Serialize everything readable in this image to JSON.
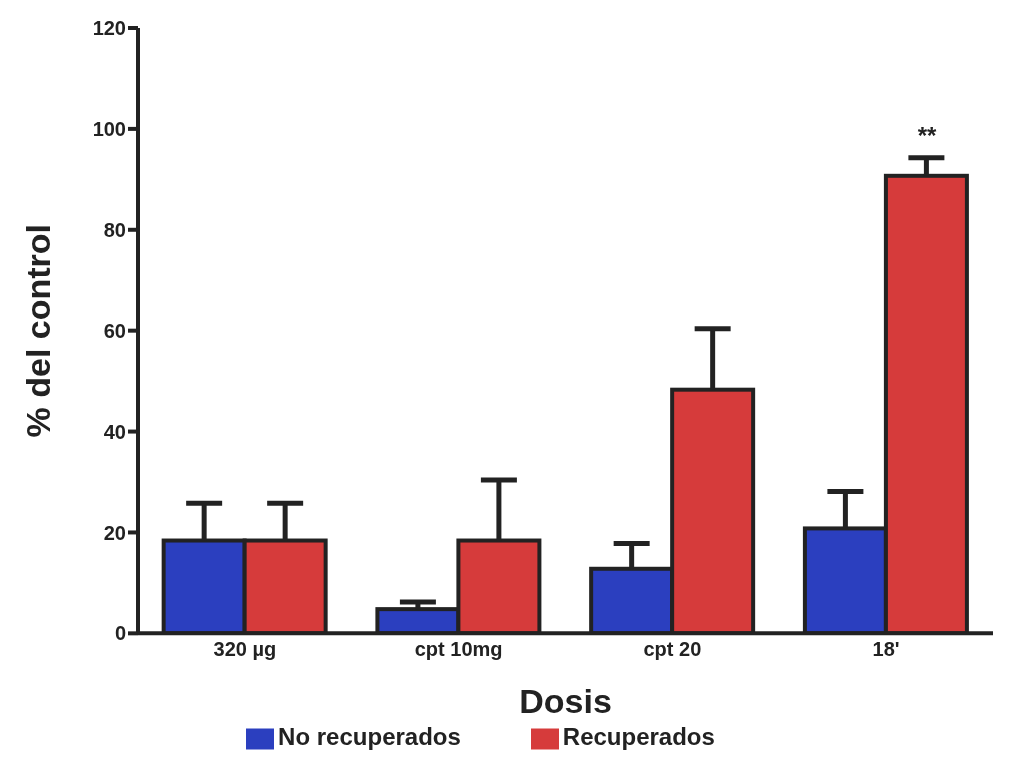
{
  "chart_data": {
    "type": "bar",
    "xlabel": "Dosis",
    "ylabel": "% del control",
    "categories": [
      "320 µg",
      "cpt 10mg",
      "cpt 20",
      "18'"
    ],
    "series": [
      {
        "name": "No recuperados",
        "color": "#2b3fbf",
        "values": [
          18.4,
          4.8,
          12.8,
          20.8
        ],
        "errors": [
          [
            18.4,
            25.8
          ],
          [
            4.8,
            6.2
          ],
          [
            12.8,
            17.8
          ],
          [
            20.8,
            28.1
          ]
        ]
      },
      {
        "name": "Recuperados",
        "color": "#d63b3b",
        "values": [
          18.4,
          18.4,
          48.3,
          90.7
        ],
        "errors": [
          [
            18.4,
            25.8
          ],
          [
            18.4,
            30.4
          ],
          [
            48.3,
            60.4
          ],
          [
            90.7,
            94.3
          ]
        ]
      }
    ],
    "annotations": [
      "**"
    ],
    "ylim": [
      0,
      120
    ],
    "yticks": [
      0,
      20,
      40,
      60,
      80,
      100,
      120
    ],
    "grid": false,
    "legend": "bottom"
  }
}
